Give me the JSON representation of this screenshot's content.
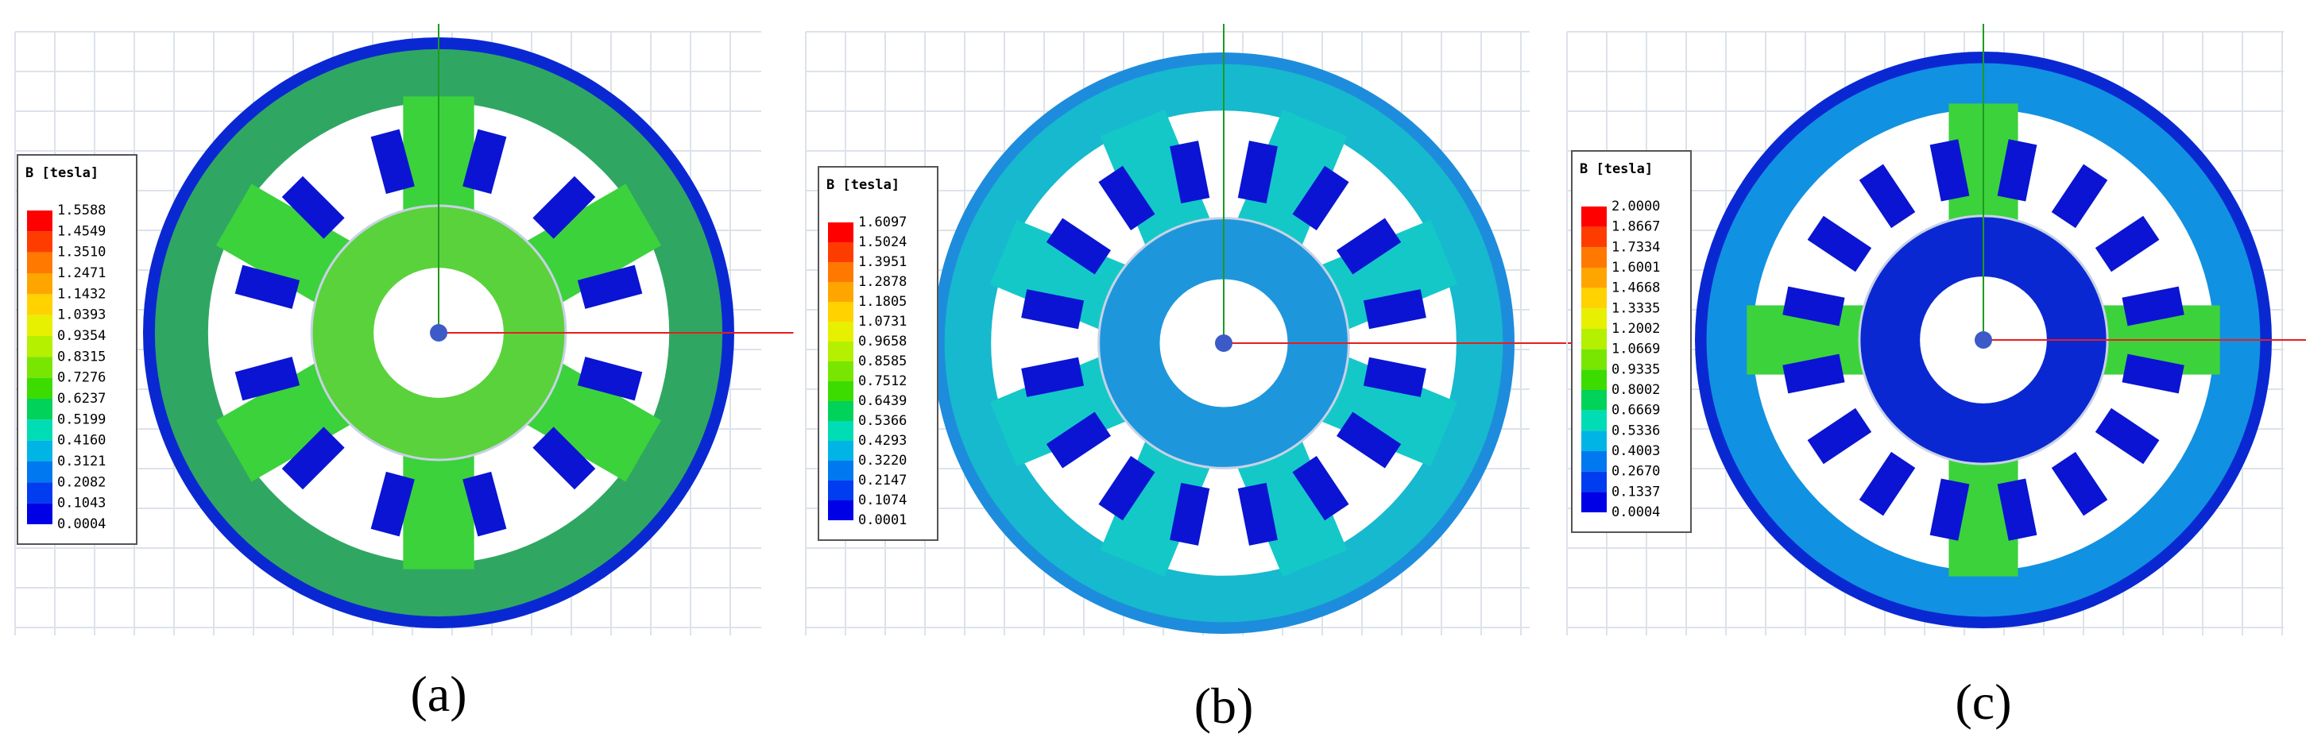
{
  "panels": [
    {
      "legend_title": "B [tesla]",
      "caption": "(a)",
      "legend_values": [
        "1.5588",
        "1.4549",
        "1.3510",
        "1.2471",
        "1.1432",
        "1.0393",
        "0.9354",
        "0.8315",
        "0.7276",
        "0.6237",
        "0.5199",
        "0.4160",
        "0.3121",
        "0.2082",
        "0.1043",
        "0.0004"
      ]
    },
    {
      "legend_title": "B [tesla]",
      "caption": "(b)",
      "legend_values": [
        "1.6097",
        "1.5024",
        "1.3951",
        "1.2878",
        "1.1805",
        "1.0731",
        "0.9658",
        "0.8585",
        "0.7512",
        "0.6439",
        "0.5366",
        "0.4293",
        "0.3220",
        "0.2147",
        "0.1074",
        "0.0001"
      ]
    },
    {
      "legend_title": "B [tesla]",
      "caption": "(c)",
      "legend_values": [
        "2.0000",
        "1.8667",
        "1.7334",
        "1.6001",
        "1.4668",
        "1.3335",
        "1.2002",
        "1.0669",
        "0.9335",
        "0.8002",
        "0.6669",
        "0.5336",
        "0.4003",
        "0.2670",
        "0.1337",
        "0.0004"
      ]
    }
  ]
}
